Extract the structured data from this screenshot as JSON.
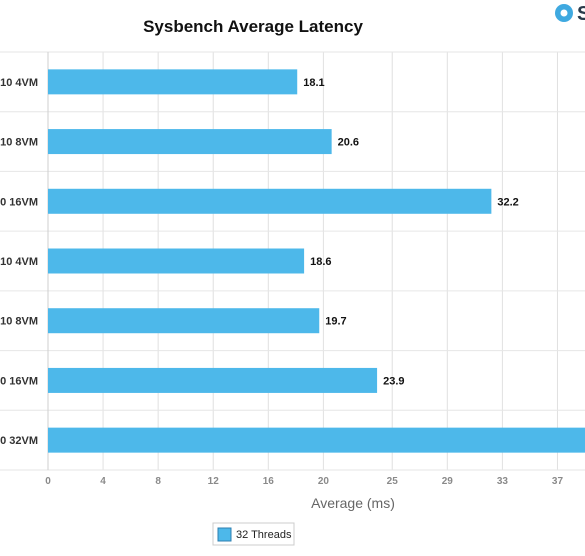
{
  "brand": {
    "icon": "brand-logo-icon",
    "text": "S"
  },
  "chart_data": {
    "type": "bar",
    "orientation": "horizontal",
    "title": "Sysbench Average Latency",
    "xlabel": "Average (ms)",
    "ylabel": "",
    "xlim": [
      0,
      39
    ],
    "x_ticks": [
      "0",
      "4",
      "8",
      "12",
      "16",
      "20",
      "25",
      "29",
      "33",
      "37"
    ],
    "categories": [
      "10 4VM",
      "10 8VM",
      "0 16VM",
      "10 4VM",
      "10 8VM",
      "0 16VM",
      "0 32VM"
    ],
    "series": [
      {
        "name": "32 Threads",
        "color": "#4db8ea",
        "values": [
          18.1,
          20.6,
          32.2,
          18.6,
          19.7,
          23.9,
          39.5
        ],
        "labels": [
          "18.1",
          "20.6",
          "32.2",
          "18.6",
          "19.7",
          "23.9",
          ""
        ]
      }
    ],
    "grid": true,
    "legend_position": "bottom-center"
  }
}
